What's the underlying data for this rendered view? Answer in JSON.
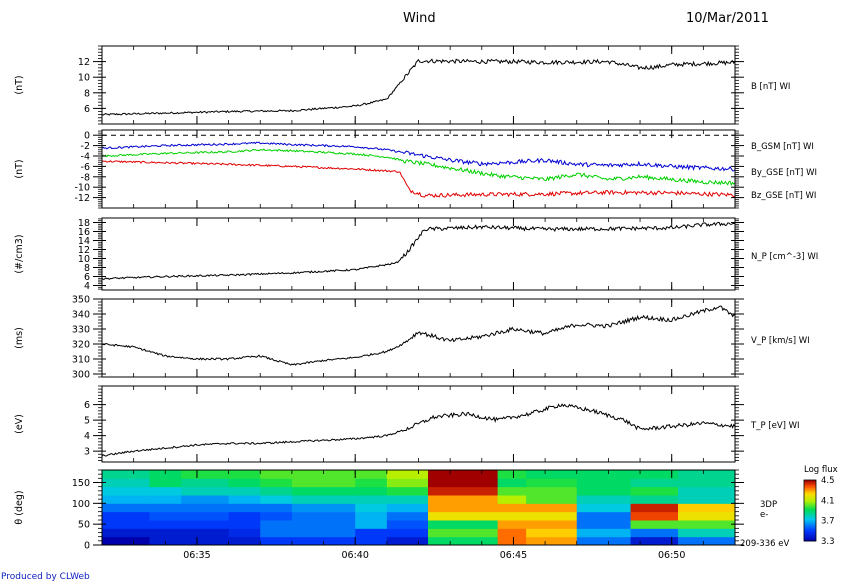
{
  "header": {
    "mission": "Wind",
    "date": "10/Mar/2011"
  },
  "footer": {
    "credit": "Produced by CLWeb"
  },
  "chart_data": [
    {
      "type": "line",
      "ylabel": "(nT)",
      "ylim": [
        4,
        14
      ],
      "yticks": [
        6,
        8,
        10,
        12
      ],
      "series": [
        {
          "name": "B [nT] WI",
          "color": "#000000",
          "x": [
            0,
            2,
            4,
            6,
            8,
            8.6,
            9,
            10,
            12,
            13,
            14,
            16,
            17,
            17.5,
            18,
            20
          ],
          "y": [
            5.2,
            5.4,
            5.6,
            5.7,
            6.3,
            6.8,
            7.2,
            12.1,
            12.0,
            12.0,
            11.9,
            12.0,
            11.2,
            11.3,
            11.6,
            11.9
          ]
        }
      ]
    },
    {
      "type": "line",
      "ylabel": "(nT)",
      "ylim": [
        -14,
        1
      ],
      "yticks": [
        0,
        -2,
        -4,
        -6,
        -8,
        -10,
        -12
      ],
      "reference_line": 0,
      "series": [
        {
          "name": "B_GSM [nT] WI",
          "color": "#e00000",
          "x": [
            0,
            2,
            4,
            6,
            8,
            9.4,
            9.7,
            10.2,
            12,
            14,
            16,
            18,
            20
          ],
          "y": [
            -5.0,
            -5.3,
            -5.6,
            -6.0,
            -6.5,
            -7.0,
            -10.5,
            -11.6,
            -11.4,
            -11.3,
            -11.0,
            -11.1,
            -11.5
          ]
        },
        {
          "name": "By_GSE [nT] WI",
          "color": "#00d000",
          "x": [
            0,
            2,
            4,
            5,
            6,
            8,
            9,
            9.6,
            10.5,
            11.5,
            12.5,
            14,
            15,
            16,
            17,
            18,
            19,
            20
          ],
          "y": [
            -4.0,
            -3.5,
            -3.2,
            -2.8,
            -3.0,
            -3.6,
            -4.2,
            -5.0,
            -5.8,
            -6.8,
            -7.8,
            -8.5,
            -7.5,
            -8.5,
            -8.0,
            -8.5,
            -9.0,
            -9.2
          ]
        },
        {
          "name": "Bz_GSE [nT] WI",
          "color": "#0000d0",
          "x": [
            0,
            2,
            4,
            5,
            6,
            8,
            9,
            10,
            11,
            12,
            13,
            14,
            15,
            16,
            17,
            18,
            19,
            20
          ],
          "y": [
            -2.5,
            -2.0,
            -1.7,
            -1.5,
            -1.8,
            -2.2,
            -2.8,
            -3.8,
            -4.8,
            -5.5,
            -5.2,
            -4.8,
            -5.6,
            -5.8,
            -5.5,
            -6.0,
            -6.3,
            -6.5
          ]
        }
      ]
    },
    {
      "type": "line",
      "ylabel": "(#/cm3)",
      "ylim": [
        3,
        19
      ],
      "yticks": [
        4,
        6,
        8,
        10,
        12,
        14,
        16,
        18
      ],
      "series": [
        {
          "name": "N_P [cm^-3] WI",
          "color": "#000000",
          "x": [
            0,
            2,
            4,
            6,
            8,
            9.3,
            9.6,
            10.2,
            12,
            14,
            16,
            18,
            19,
            20
          ],
          "y": [
            5.5,
            6.0,
            6.3,
            6.8,
            7.5,
            9.0,
            11.0,
            16.5,
            17.0,
            16.5,
            16.6,
            16.8,
            17.5,
            17.8
          ]
        }
      ]
    },
    {
      "type": "line",
      "ylabel": "(ms)",
      "ylim": [
        298,
        350
      ],
      "yticks": [
        300,
        310,
        320,
        330,
        340,
        350
      ],
      "series": [
        {
          "name": "V_P [km/s] WI",
          "color": "#000000",
          "x": [
            0,
            1,
            2,
            3,
            4,
            5,
            6,
            7,
            8,
            9,
            9.5,
            10,
            11,
            12,
            13,
            14,
            15,
            16,
            17,
            18,
            19,
            19.5,
            20
          ],
          "y": [
            320,
            318,
            312,
            310,
            310,
            312,
            306,
            309,
            311,
            315,
            320,
            328,
            322,
            325,
            330,
            327,
            333,
            332,
            338,
            336,
            342,
            345,
            338
          ]
        }
      ]
    },
    {
      "type": "line",
      "ylabel": "(eV)",
      "ylim": [
        2.3,
        7.2
      ],
      "yticks": [
        3,
        4,
        5,
        6
      ],
      "series": [
        {
          "name": "T_P [eV] WI",
          "color": "#000000",
          "x": [
            0,
            1,
            2,
            3,
            4,
            5,
            6,
            7,
            8,
            9,
            9.6,
            10.5,
            11.5,
            12.5,
            13.5,
            14.5,
            15.5,
            16.5,
            17,
            18,
            19,
            20
          ],
          "y": [
            2.7,
            3.0,
            3.2,
            3.4,
            3.5,
            3.5,
            3.6,
            3.7,
            3.8,
            4.0,
            4.4,
            5.2,
            5.4,
            5.0,
            5.4,
            6.0,
            5.6,
            5.0,
            4.4,
            4.6,
            4.8,
            4.6
          ]
        }
      ]
    },
    {
      "type": "heatmap",
      "ylabel": "θ (deg)",
      "ylim": [
        0,
        180
      ],
      "yticks": [
        0,
        50,
        100,
        150
      ],
      "x_edges": [
        0,
        1.5,
        2.5,
        4,
        5,
        6,
        8,
        9,
        10.3,
        12.5,
        13.4,
        15,
        16.7,
        18.2,
        20
      ],
      "y_edges": [
        0,
        20,
        40,
        60,
        80,
        100,
        120,
        140,
        160,
        180
      ],
      "values": [
        [
          3.3,
          3.4,
          3.4,
          3.4,
          3.5,
          3.5,
          3.5,
          3.4,
          3.9,
          4.35,
          4.3,
          3.6,
          3.4,
          3.6
        ],
        [
          3.4,
          3.4,
          3.4,
          3.45,
          3.6,
          3.6,
          3.5,
          3.5,
          4.0,
          4.35,
          4.25,
          3.7,
          3.6,
          3.8
        ],
        [
          3.5,
          3.5,
          3.5,
          3.5,
          3.6,
          3.6,
          3.7,
          3.55,
          3.9,
          4.3,
          4.3,
          3.6,
          4.0,
          4.0
        ],
        [
          3.5,
          3.55,
          3.55,
          3.5,
          3.55,
          3.6,
          3.7,
          3.6,
          4.2,
          4.2,
          4.2,
          3.6,
          4.4,
          4.2
        ],
        [
          3.6,
          3.6,
          3.6,
          3.6,
          3.6,
          3.65,
          3.75,
          3.7,
          4.3,
          4.3,
          4.3,
          3.75,
          4.45,
          4.25
        ],
        [
          3.7,
          3.7,
          3.65,
          3.7,
          3.75,
          3.8,
          3.8,
          3.8,
          4.3,
          4.1,
          4.0,
          3.8,
          3.85,
          3.8
        ],
        [
          3.75,
          3.75,
          3.8,
          3.8,
          3.85,
          3.9,
          3.9,
          3.95,
          4.45,
          4.0,
          4.0,
          3.9,
          3.95,
          3.8
        ],
        [
          3.8,
          3.9,
          3.85,
          3.9,
          3.95,
          4.0,
          3.95,
          4.05,
          4.5,
          3.9,
          3.95,
          3.9,
          3.85,
          3.85
        ],
        [
          3.85,
          3.9,
          3.95,
          3.95,
          4.0,
          4.0,
          4.0,
          4.1,
          4.5,
          3.95,
          3.9,
          3.9,
          3.9,
          3.85
        ]
      ],
      "label": "3DP\ne-",
      "energy_label": "209-336 eV",
      "colorbar": {
        "title": "Log flux",
        "min": 3.3,
        "max": 4.5,
        "ticks": [
          4.5,
          4.1,
          3.7,
          3.3
        ]
      }
    }
  ],
  "time_axis": {
    "unit": "minutes after 06:32 UT",
    "range": [
      0,
      20
    ],
    "labels": [
      {
        "t": 3,
        "text": "06:35"
      },
      {
        "t": 8,
        "text": "06:40"
      },
      {
        "t": 13,
        "text": "06:45"
      },
      {
        "t": 18,
        "text": "06:50"
      }
    ]
  },
  "colors": {
    "credit": "#1020c0",
    "axis": "#000000"
  }
}
